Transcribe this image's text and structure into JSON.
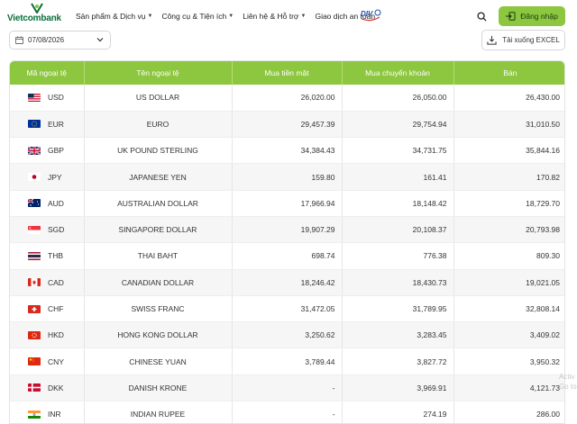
{
  "header": {
    "logo_text": "Vietcombank",
    "nav": [
      {
        "label": "Sản phẩm & Dịch vụ",
        "has_dropdown": true
      },
      {
        "label": "Công cụ & Tiện ích",
        "has_dropdown": true
      },
      {
        "label": "Liên hệ & Hỗ trợ",
        "has_dropdown": true
      },
      {
        "label": "Giao dịch an toàn",
        "has_dropdown": false
      }
    ],
    "login_label": "Đăng nhập",
    "search_icon": "search-icon"
  },
  "toolbar": {
    "date_value": "07/08/2026",
    "excel_label": "Tải xuống EXCEL"
  },
  "table": {
    "columns": [
      "Mã ngoại tệ",
      "Tên ngoại tệ",
      "Mua tiền mặt",
      "Mua chuyển khoản",
      "Bán"
    ],
    "rows": [
      {
        "code": "USD",
        "name": "US DOLLAR",
        "cash": "26,020.00",
        "transfer": "26,050.00",
        "sell": "26,430.00",
        "flag": "us"
      },
      {
        "code": "EUR",
        "name": "EURO",
        "cash": "29,457.39",
        "transfer": "29,754.94",
        "sell": "31,010.50",
        "flag": "eu"
      },
      {
        "code": "GBP",
        "name": "UK POUND STERLING",
        "cash": "34,384.43",
        "transfer": "34,731.75",
        "sell": "35,844.16",
        "flag": "gb"
      },
      {
        "code": "JPY",
        "name": "JAPANESE YEN",
        "cash": "159.80",
        "transfer": "161.41",
        "sell": "170.82",
        "flag": "jp"
      },
      {
        "code": "AUD",
        "name": "AUSTRALIAN DOLLAR",
        "cash": "17,966.94",
        "transfer": "18,148.42",
        "sell": "18,729.70",
        "flag": "au"
      },
      {
        "code": "SGD",
        "name": "SINGAPORE DOLLAR",
        "cash": "19,907.29",
        "transfer": "20,108.37",
        "sell": "20,793.98",
        "flag": "sg"
      },
      {
        "code": "THB",
        "name": "THAI BAHT",
        "cash": "698.74",
        "transfer": "776.38",
        "sell": "809.30",
        "flag": "th"
      },
      {
        "code": "CAD",
        "name": "CANADIAN DOLLAR",
        "cash": "18,246.42",
        "transfer": "18,430.73",
        "sell": "19,021.05",
        "flag": "ca"
      },
      {
        "code": "CHF",
        "name": "SWISS FRANC",
        "cash": "31,472.05",
        "transfer": "31,789.95",
        "sell": "32,808.14",
        "flag": "ch"
      },
      {
        "code": "HKD",
        "name": "HONG KONG DOLLAR",
        "cash": "3,250.62",
        "transfer": "3,283.45",
        "sell": "3,409.02",
        "flag": "hk"
      },
      {
        "code": "CNY",
        "name": "CHINESE YUAN",
        "cash": "3,789.44",
        "transfer": "3,827.72",
        "sell": "3,950.32",
        "flag": "cn"
      },
      {
        "code": "DKK",
        "name": "DANISH KRONE",
        "cash": "-",
        "transfer": "3,969.91",
        "sell": "4,121.73",
        "flag": "dk"
      },
      {
        "code": "INR",
        "name": "INDIAN RUPEE",
        "cash": "-",
        "transfer": "274.19",
        "sell": "286.00",
        "flag": "in"
      }
    ]
  },
  "watermark": {
    "line1": "Activ",
    "line2": "Go to"
  },
  "colors": {
    "brand_green": "#0a6e3c",
    "accent_green": "#8dc63f"
  }
}
